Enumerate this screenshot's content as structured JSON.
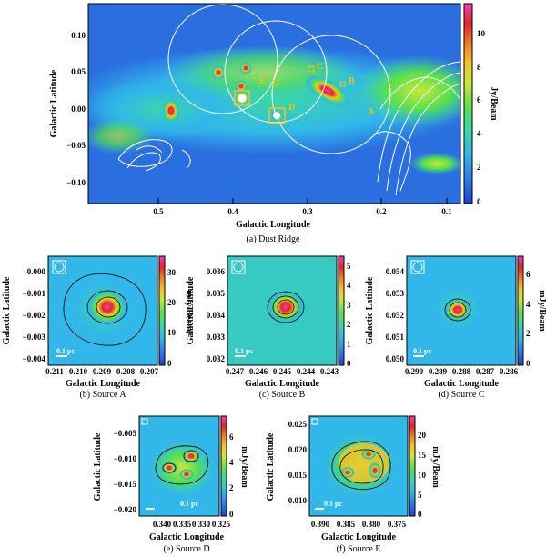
{
  "colors": {
    "frame": "#000000",
    "contour": "#ffffff",
    "label": "#f5c400",
    "colorbar": [
      "#1f3fd6",
      "#2a7de6",
      "#31b7e9",
      "#3ad7a8",
      "#57e04c",
      "#c8e73a",
      "#f2c42c",
      "#ef7d22",
      "#e3262b",
      "#ef3fb8"
    ]
  },
  "panels": [
    {
      "id": "a",
      "caption": "(a) Dust Ridge",
      "xlabel": "Galactic Longitude",
      "ylabel": "Galactic Latitude",
      "cbar_label": "Jy/Beam",
      "xticks": [
        "0.5",
        "0.4",
        "0.3",
        "0.2",
        "0.1"
      ],
      "yticks": [
        "0.10",
        "0.05",
        "0.00",
        "−0.05",
        "−0.10"
      ],
      "cticks": [
        "10",
        "8",
        "6",
        "4",
        "2",
        "0"
      ],
      "sources": [
        "A",
        "B",
        "C",
        "D",
        "E"
      ]
    },
    {
      "id": "b",
      "caption": "(b) Source A",
      "xlabel": "Galactic Longitude",
      "ylabel": "Galactic Latitude",
      "cbar_label": "mJy/Beam",
      "scale": "0.1 pc",
      "xticks": [
        "0.211",
        "0.210",
        "0.209",
        "0.208",
        "0.207"
      ],
      "yticks": [
        "0.000",
        "−0.001",
        "−0.002",
        "−0.003",
        "−0.004"
      ],
      "cticks": [
        "30",
        "20",
        "10",
        "0"
      ]
    },
    {
      "id": "c",
      "caption": "(c) Source B",
      "xlabel": "Galactic Longitude",
      "ylabel": "Galactic Latitude",
      "cbar_label": "mJy/Beam",
      "scale": "0.1 pc",
      "xticks": [
        "0.247",
        "0.246",
        "0.245",
        "0.244",
        "0.243"
      ],
      "yticks": [
        "0.036",
        "0.035",
        "0.034",
        "0.033",
        "0.032"
      ],
      "cticks": [
        "5",
        "4",
        "3",
        "2",
        "1",
        "0"
      ]
    },
    {
      "id": "d",
      "caption": "(d) Source C",
      "xlabel": "Galactic Longitude",
      "ylabel": "Galactic Latitude",
      "cbar_label": "mJy/Beam",
      "scale": "0.1 pc",
      "xticks": [
        "0.290",
        "0.289",
        "0.288",
        "0.287",
        "0.286"
      ],
      "yticks": [
        "0.054",
        "0.053",
        "0.052",
        "0.051",
        "0.050"
      ],
      "cticks": [
        "6",
        "4",
        "2",
        "0"
      ]
    },
    {
      "id": "e",
      "caption": "(e) Source D",
      "xlabel": "Galactic Longitude",
      "ylabel": "Galactic Latitude",
      "cbar_label": "mJy/Beam",
      "scale": "0.1 pc",
      "xticks": [
        "0.340",
        "0.335",
        "0.330",
        "0.325"
      ],
      "yticks": [
        "−0.005",
        "−0.010",
        "−0.015",
        "−0.020"
      ],
      "cticks": [
        "6",
        "4",
        "2",
        "0"
      ]
    },
    {
      "id": "f",
      "caption": "(f) Source E",
      "xlabel": "Galactic Longitude",
      "ylabel": "Galactic Latitude",
      "cbar_label": "mJy/Beam",
      "scale": "0.1 pc",
      "xticks": [
        "0.390",
        "0.385",
        "0.380",
        "0.375"
      ],
      "yticks": [
        "0.025",
        "0.020",
        "0.015",
        "0.010"
      ],
      "cticks": [
        "20",
        "15",
        "10",
        "5",
        "0"
      ]
    }
  ]
}
